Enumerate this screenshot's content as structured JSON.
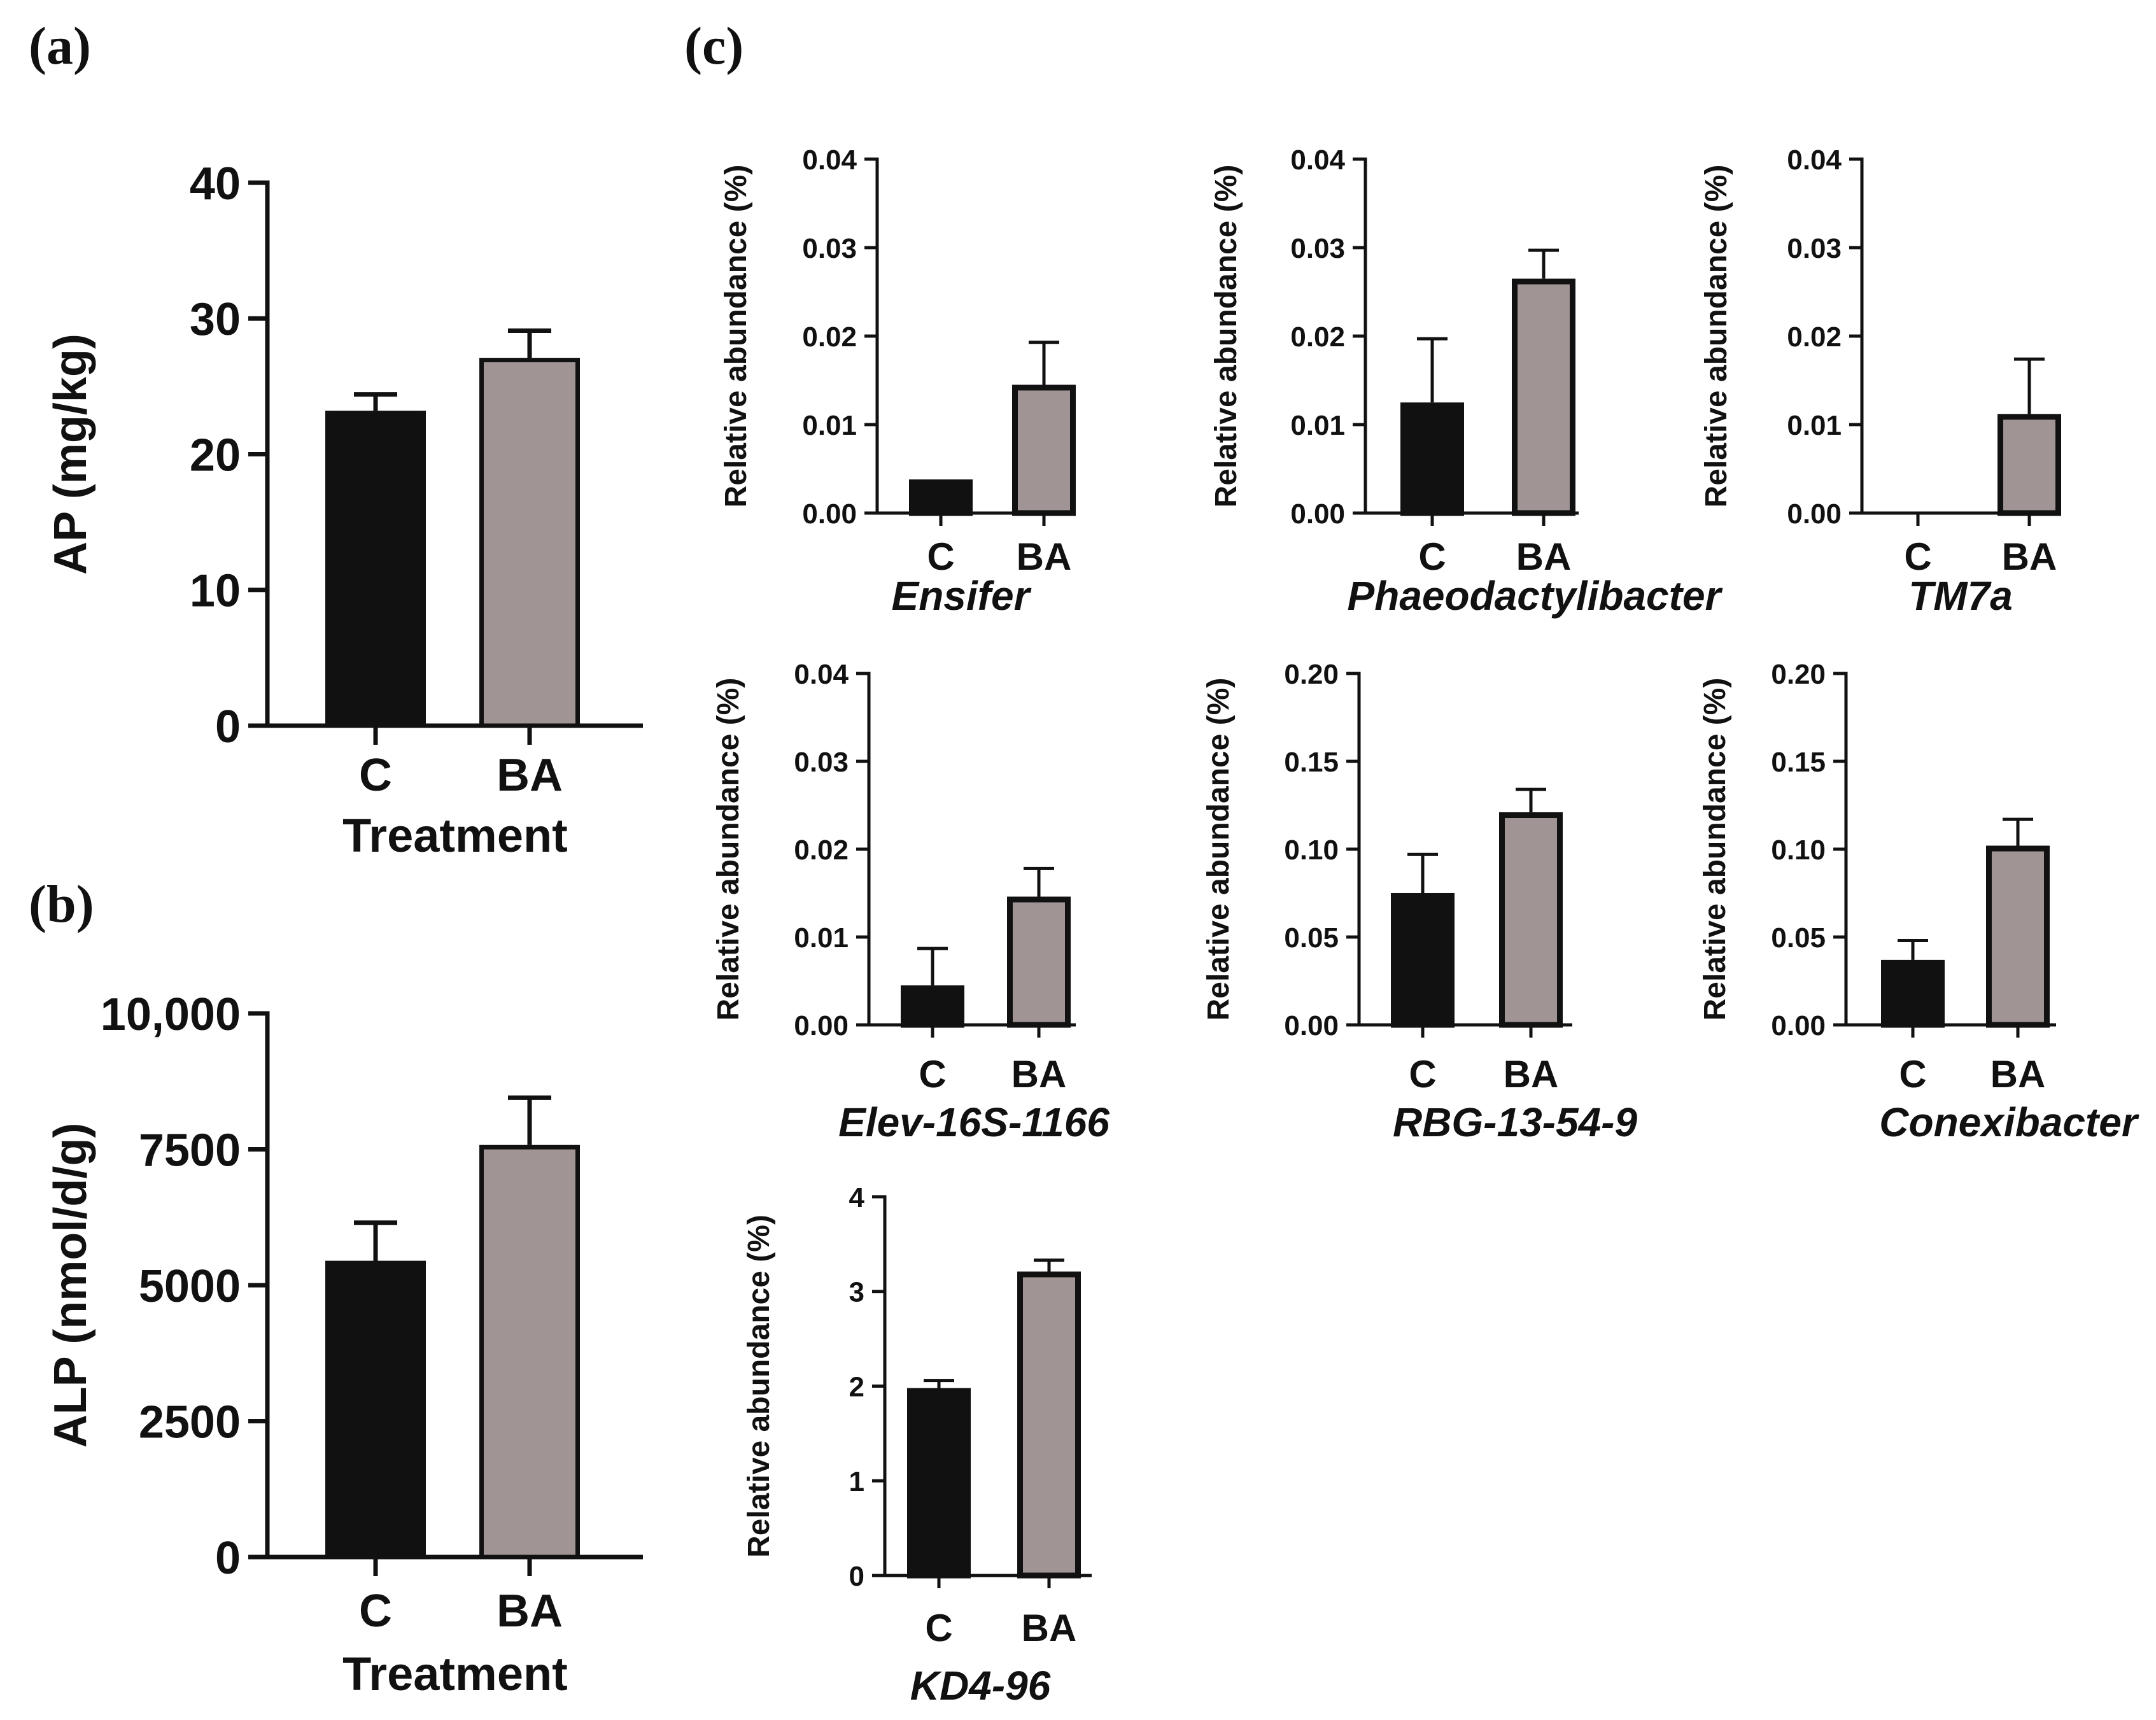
{
  "panel_labels": [
    "(a)",
    "(b)",
    "(c)"
  ],
  "colors": {
    "control": "#111111",
    "treatment": "#a09594",
    "axis": "#111111",
    "background": "#ffffff"
  },
  "chart_data": [
    {
      "id": "a",
      "type": "bar",
      "categories": [
        "C",
        "BA"
      ],
      "values": [
        23.2,
        27.1
      ],
      "errors": [
        1.2,
        2.0
      ],
      "ylim": [
        0,
        40
      ],
      "ticks": [
        0,
        10,
        20,
        30,
        40
      ],
      "tick_labels": [
        "0",
        "10",
        "20",
        "30",
        "40"
      ],
      "ylabel": "AP (mg/kg)",
      "xlabel": "Treatment",
      "title": ""
    },
    {
      "id": "b",
      "type": "bar",
      "categories": [
        "C",
        "BA"
      ],
      "values": [
        5450,
        7580
      ],
      "errors": [
        700,
        870
      ],
      "ylim": [
        0,
        10000
      ],
      "ticks": [
        0,
        2500,
        5000,
        7500,
        10000
      ],
      "tick_labels": [
        "0",
        "2500",
        "5000",
        "7500",
        "10,000"
      ],
      "ylabel": "ALP (nmol/d/g)",
      "xlabel": "Treatment",
      "title": ""
    },
    {
      "id": "c1",
      "type": "bar",
      "categories": [
        "C",
        "BA"
      ],
      "values": [
        0.0038,
        0.0145
      ],
      "errors": [
        0.0,
        0.0048
      ],
      "ylim": [
        0,
        0.04
      ],
      "ticks": [
        0,
        0.01,
        0.02,
        0.03,
        0.04
      ],
      "tick_labels": [
        "0.00",
        "0.01",
        "0.02",
        "0.03",
        "0.04"
      ],
      "ylabel": "Relative abundance (%)",
      "xlabel": "Ensifer",
      "title": ""
    },
    {
      "id": "c2",
      "type": "bar",
      "categories": [
        "C",
        "BA"
      ],
      "values": [
        0.0125,
        0.0265
      ],
      "errors": [
        0.0072,
        0.0032
      ],
      "ylim": [
        0,
        0.04
      ],
      "ticks": [
        0,
        0.01,
        0.02,
        0.03,
        0.04
      ],
      "tick_labels": [
        "0.00",
        "0.01",
        "0.02",
        "0.03",
        "0.04"
      ],
      "ylabel": "Relative abundance (%)",
      "xlabel": "Phaeodactylibacter",
      "title": ""
    },
    {
      "id": "c3",
      "type": "bar",
      "categories": [
        "C",
        "BA"
      ],
      "values": [
        0,
        0.0112
      ],
      "errors": [
        0,
        0.0062
      ],
      "ylim": [
        0,
        0.04
      ],
      "ticks": [
        0,
        0.01,
        0.02,
        0.03,
        0.04
      ],
      "tick_labels": [
        "0.00",
        "0.01",
        "0.02",
        "0.03",
        "0.04"
      ],
      "ylabel": "Relative abundance (%)",
      "xlabel": "TM7a",
      "title": ""
    },
    {
      "id": "c4",
      "type": "bar",
      "categories": [
        "C",
        "BA"
      ],
      "values": [
        0.0045,
        0.0146
      ],
      "errors": [
        0.0042,
        0.0032
      ],
      "ylim": [
        0,
        0.04
      ],
      "ticks": [
        0,
        0.01,
        0.02,
        0.03,
        0.04
      ],
      "tick_labels": [
        "0.00",
        "0.01",
        "0.02",
        "0.03",
        "0.04"
      ],
      "ylabel": "Relative abundance (%)",
      "xlabel": "Elev-16S-1166",
      "title": ""
    },
    {
      "id": "c5",
      "type": "bar",
      "categories": [
        "C",
        "BA"
      ],
      "values": [
        0.075,
        0.121
      ],
      "errors": [
        0.022,
        0.013
      ],
      "ylim": [
        0,
        0.2
      ],
      "ticks": [
        0,
        0.05,
        0.1,
        0.15,
        0.2
      ],
      "tick_labels": [
        "0.00",
        "0.05",
        "0.10",
        "0.15",
        "0.20"
      ],
      "ylabel": "Relative abundance (%)",
      "xlabel": "RBG-13-54-9",
      "title": ""
    },
    {
      "id": "c6",
      "type": "bar",
      "categories": [
        "C",
        "BA"
      ],
      "values": [
        0.037,
        0.102
      ],
      "errors": [
        0.011,
        0.015
      ],
      "ylim": [
        0,
        0.2
      ],
      "ticks": [
        0,
        0.05,
        0.1,
        0.15,
        0.2
      ],
      "tick_labels": [
        "0.00",
        "0.05",
        "0.10",
        "0.15",
        "0.20"
      ],
      "ylabel": "Relative abundance (%)",
      "xlabel": "Conexibacter",
      "title": ""
    },
    {
      "id": "c7",
      "type": "bar",
      "categories": [
        "C",
        "BA"
      ],
      "values": [
        1.98,
        3.21
      ],
      "errors": [
        0.08,
        0.12
      ],
      "ylim": [
        0,
        4
      ],
      "ticks": [
        0,
        1,
        2,
        3,
        4
      ],
      "tick_labels": [
        "0",
        "1",
        "2",
        "3",
        "4"
      ],
      "ylabel": "Relative abundance (%)",
      "xlabel": "KD4-96",
      "title": ""
    }
  ]
}
